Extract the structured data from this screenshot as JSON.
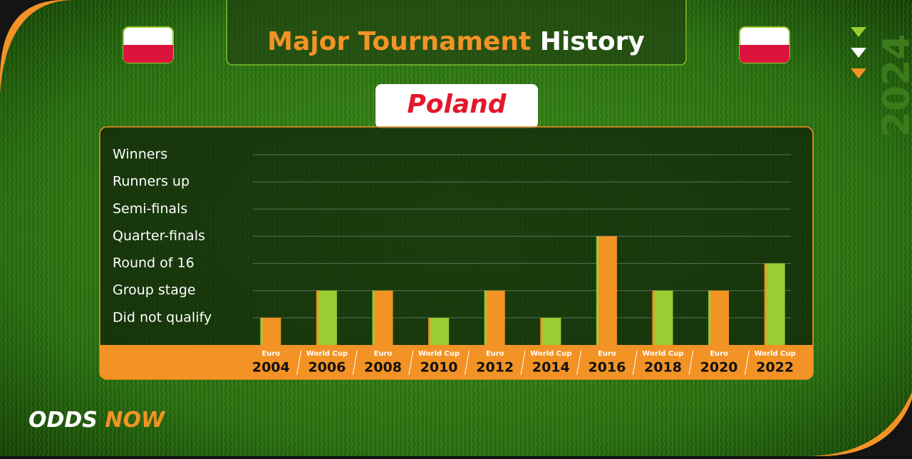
{
  "header": {
    "title_part1": "Major Tournament",
    "title_part2": "History",
    "country": "Poland",
    "brand_part1": "ODDS",
    "brand_part2": "NOW",
    "year_badge": "2024"
  },
  "chart_data": {
    "type": "bar",
    "categories": [
      "2004",
      "2006",
      "2008",
      "2010",
      "2012",
      "2014",
      "2016",
      "2018",
      "2020",
      "2022"
    ],
    "tournaments": [
      "Euro",
      "World Cup",
      "Euro",
      "World Cup",
      "Euro",
      "World Cup",
      "Euro",
      "World Cup",
      "Euro",
      "World Cup"
    ],
    "values": [
      1,
      2,
      2,
      1,
      2,
      1,
      4,
      2,
      2,
      3
    ],
    "colors": [
      "#f39325",
      "#9acd32",
      "#f39325",
      "#9acd32",
      "#f39325",
      "#9acd32",
      "#f39325",
      "#9acd32",
      "#f39325",
      "#9acd32"
    ],
    "ylim": [
      0,
      7
    ],
    "yticks": [
      {
        "value": 1,
        "label": "Did not qualify"
      },
      {
        "value": 2,
        "label": "Group stage"
      },
      {
        "value": 3,
        "label": "Round of 16"
      },
      {
        "value": 4,
        "label": "Quarter-finals"
      },
      {
        "value": 5,
        "label": "Semi-finals"
      },
      {
        "value": 6,
        "label": "Runners up"
      },
      {
        "value": 7,
        "label": "Winners"
      }
    ],
    "grid": true
  }
}
